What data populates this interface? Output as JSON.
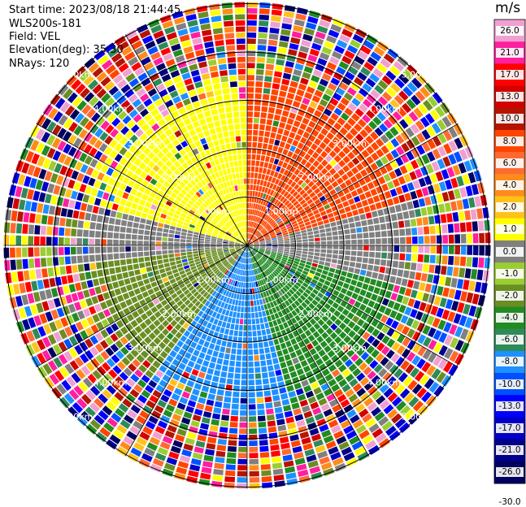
{
  "header": {
    "start_time": "Start time: 2023/08/18 21:44:45",
    "instrument": "WLS200s-181",
    "field": "Field: VEL",
    "elevation": "Elevation(deg): 35.30",
    "nrays": "NRays: 120"
  },
  "chart_data": {
    "type": "heatmap",
    "projection": "polar-ppi",
    "field": "VEL",
    "units": "m/s",
    "nrays": 120,
    "elevation_deg": 35.3,
    "range_rings_km": [
      1.0,
      2.0,
      3.0,
      4.0,
      5.0
    ],
    "ring_labels": [
      "1.00km",
      "2.00km",
      "3.00km",
      "4.00km",
      "5.00km"
    ],
    "colorbar": {
      "ticks": [
        26.0,
        21.0,
        17.0,
        13.0,
        10.0,
        8.0,
        6.0,
        4.0,
        2.0,
        1.0,
        0.0,
        -1.0,
        -2.0,
        -4.0,
        -6.0,
        -8.0,
        -10.0,
        -13.0,
        -17.0,
        -21.0,
        -26.0,
        -30.0
      ],
      "tick_labels": [
        "26.0",
        "21.0",
        "17.0",
        "13.0",
        "10.0",
        "8.0",
        "6.0",
        "4.0",
        "2.0",
        "1.0",
        "0.0",
        "-1.0",
        "-2.0",
        "-4.0",
        "-6.0",
        "-8.0",
        "-10.0",
        "-13.0",
        "-17.0",
        "-21.0",
        "-26.0",
        "-30.0"
      ],
      "colors": [
        "#f0a0d0",
        "#ff1f9f",
        "#ff0000",
        "#d20000",
        "#b41400",
        "#ff4500",
        "#ff6a30",
        "#ff8c1a",
        "#ffc21a",
        "#ffff00",
        "#808080",
        "#9acd32",
        "#6b8e23",
        "#228b22",
        "#2e8b57",
        "#1e90ff",
        "#0050ff",
        "#0000ff",
        "#0000c8",
        "#00008b",
        "#000060"
      ]
    },
    "sectors": [
      {
        "azimuth_range_deg": [
          285,
          360
        ],
        "velocity_ms": [
          4.0,
          8.0
        ],
        "color": "#ffff00"
      },
      {
        "azimuth_range_deg": [
          0,
          75
        ],
        "velocity_ms": [
          8.0,
          13.0
        ],
        "color": "#ff4500"
      },
      {
        "azimuth_range_deg": [
          75,
          105
        ],
        "velocity_ms": [
          -1.0,
          2.0
        ],
        "color": "#808080"
      },
      {
        "azimuth_range_deg": [
          105,
          165
        ],
        "velocity_ms": [
          -8.0,
          -4.0
        ],
        "color": "#228b22"
      },
      {
        "azimuth_range_deg": [
          165,
          215
        ],
        "velocity_ms": [
          -10.0,
          -6.0
        ],
        "color": "#1e90ff"
      },
      {
        "azimuth_range_deg": [
          215,
          265
        ],
        "velocity_ms": [
          -6.0,
          -2.0
        ],
        "color": "#6b8e23"
      },
      {
        "azimuth_range_deg": [
          265,
          285
        ],
        "velocity_ms": [
          -1.0,
          2.0
        ],
        "color": "#808080"
      }
    ],
    "clean_range_km": 3.5,
    "max_range_km": 5.0,
    "grid": true
  }
}
